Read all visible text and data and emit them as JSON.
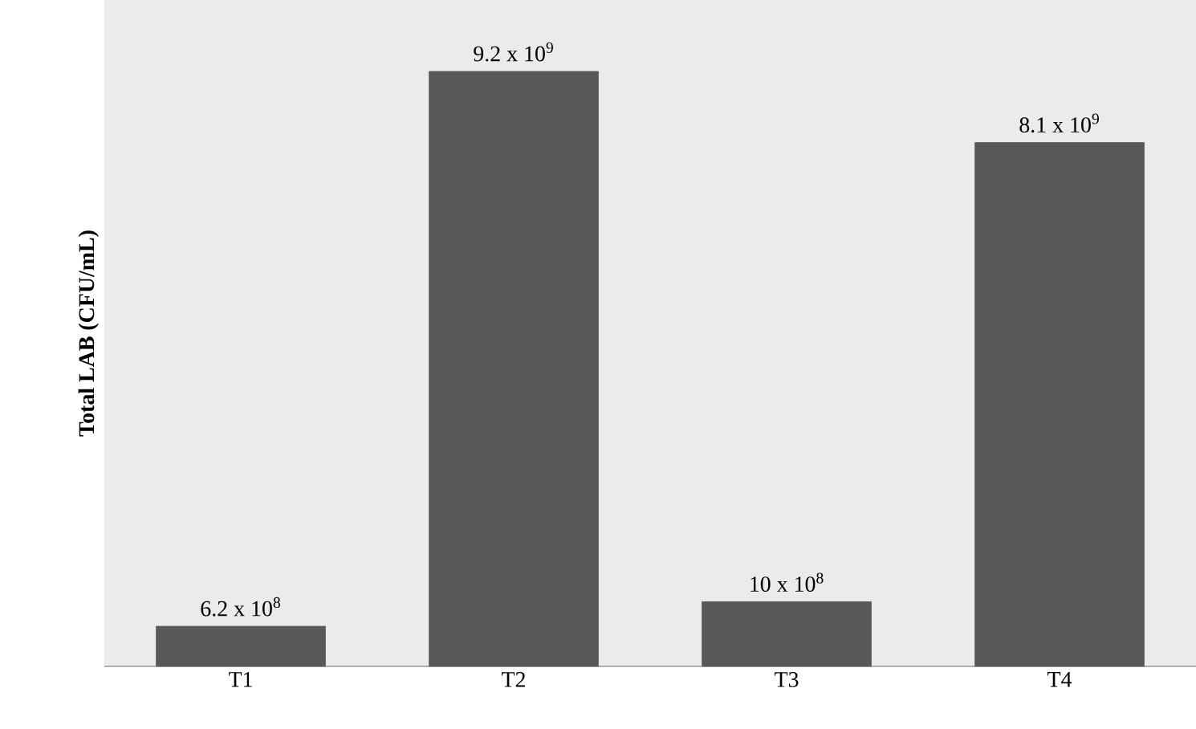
{
  "chart_data": {
    "type": "bar",
    "ylabel": "**Total LAB (CFU/mL)**",
    "categories": [
      "T1",
      "T2",
      "T3",
      "T4"
    ],
    "values": [
      620000000,
      9200000000,
      1000000000,
      8100000000
    ],
    "value_labels": [
      "6.2 x 10$^{8}$",
      "9.2 x 10$^{9}$",
      "10 x 10$^{8}$",
      "8.1 x 10$^{9}$"
    ],
    "color": "#595959"
  }
}
